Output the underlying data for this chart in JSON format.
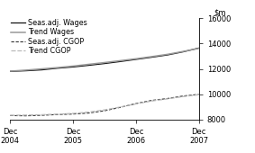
{
  "title": "",
  "ylim": [
    8000,
    16000
  ],
  "yticks": [
    8000,
    10000,
    12000,
    14000,
    16000
  ],
  "ytick_labels": [
    "8000",
    "10000",
    "12000",
    "14000",
    "16000"
  ],
  "xtick_labels": [
    "Dec\n2004",
    "Dec\n2005",
    "Dec\n2006",
    "Dec\n2007"
  ],
  "xtick_positions": [
    0,
    4,
    8,
    12
  ],
  "seas_wages": [
    11800,
    11850,
    11920,
    12050,
    12150,
    12280,
    12420,
    12580,
    12750,
    12920,
    13100,
    13350,
    13650
  ],
  "trend_wages": [
    11820,
    11900,
    12000,
    12100,
    12220,
    12360,
    12500,
    12650,
    12800,
    12970,
    13150,
    13380,
    13620
  ],
  "seas_cgop": [
    8300,
    8280,
    8320,
    8380,
    8420,
    8500,
    8680,
    8950,
    9250,
    9500,
    9650,
    9850,
    9980
  ],
  "trend_cgop": [
    8320,
    8340,
    8370,
    8410,
    8470,
    8580,
    8750,
    8980,
    9220,
    9450,
    9620,
    9800,
    9950
  ],
  "seas_wages_color": "#111111",
  "trend_wages_color": "#999999",
  "seas_cgop_color": "#333333",
  "trend_cgop_color": "#bbbbbb",
  "background_color": "#ffffff",
  "legend_fontsize": 5.8,
  "tick_fontsize": 6.0
}
